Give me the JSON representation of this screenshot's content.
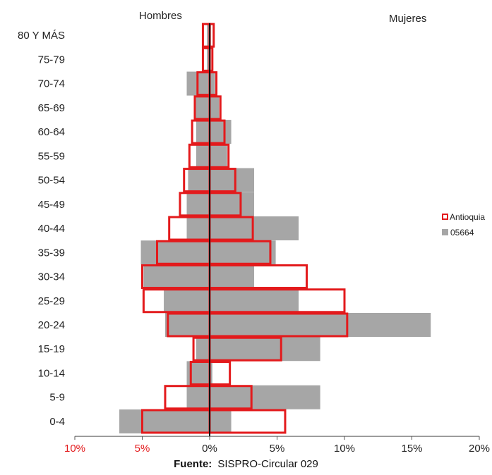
{
  "chart_data": {
    "type": "bar",
    "orientation": "horizontal-population-pyramid",
    "left_label": "Hombres",
    "right_label": "Mujeres",
    "categories": [
      "80 Y MÁS",
      "75-79",
      "70-74",
      "65-69",
      "60-64",
      "55-59",
      "50-54",
      "45-49",
      "40-44",
      "35-39",
      "30-34",
      "25-29",
      "20-24",
      "15-19",
      "10-14",
      "5-9",
      "0-4"
    ],
    "x_ticks": [
      "10%",
      "5%",
      "0%",
      "5%",
      "10%",
      "15%",
      "20%"
    ],
    "x_tick_values": [
      -10,
      -5,
      0,
      5,
      10,
      15,
      20
    ],
    "xlim": [
      -10,
      20
    ],
    "series": [
      {
        "name": "Antioquia",
        "style": "outline",
        "color": "#e31a1c",
        "men": [
          0.5,
          0.5,
          0.9,
          1.1,
          1.3,
          1.5,
          1.9,
          2.2,
          3.0,
          3.9,
          5.0,
          4.9,
          3.1,
          1.2,
          1.4,
          3.3,
          5.0
        ],
        "women": [
          0.3,
          0.2,
          0.5,
          0.8,
          1.1,
          1.4,
          1.9,
          2.3,
          3.2,
          4.5,
          7.2,
          10.0,
          10.2,
          5.3,
          1.5,
          3.1,
          5.6
        ]
      },
      {
        "name": "05664",
        "style": "filled",
        "color": "#a6a6a6",
        "men": [
          0.2,
          0.2,
          1.7,
          1.1,
          1.0,
          1.0,
          1.6,
          1.7,
          1.7,
          5.1,
          4.9,
          3.4,
          3.3,
          1.0,
          1.7,
          1.7,
          6.7
        ],
        "women": [
          0.1,
          0.1,
          0.4,
          0.7,
          1.6,
          1.3,
          3.3,
          3.3,
          6.6,
          4.9,
          3.3,
          6.6,
          16.4,
          8.2,
          0.2,
          8.2,
          1.6
        ]
      }
    ],
    "legend_position": "right",
    "grid": false
  },
  "colors": {
    "outline": "#e31a1c",
    "filled": "#a6a6a6",
    "axis": "#111111",
    "negative_tick": "#e31a1c"
  },
  "source": {
    "label": "Fuente:",
    "text": "SISPRO-Circular 029"
  }
}
